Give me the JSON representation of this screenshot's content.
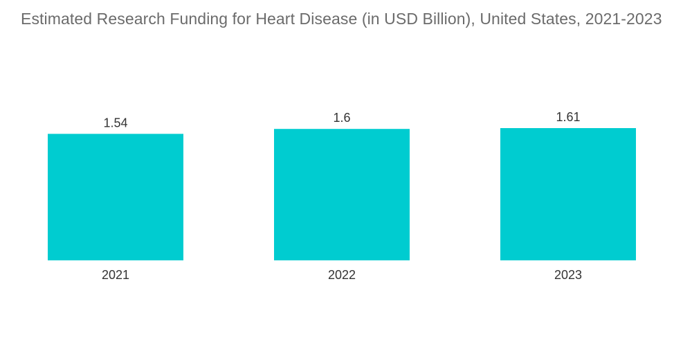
{
  "chart_data": {
    "type": "bar",
    "title": "Estimated Research Funding for Heart Disease (in USD Billion), United States, 2021-2023",
    "categories": [
      "2021",
      "2022",
      "2023"
    ],
    "values": [
      1.54,
      1.6,
      1.61
    ],
    "value_labels": [
      "1.54",
      "1.6",
      "1.61"
    ],
    "xlabel": "",
    "ylabel": "",
    "ylim": [
      0,
      1.61
    ],
    "grid": false,
    "legend": "none",
    "bar_color": "#00ccd0"
  }
}
